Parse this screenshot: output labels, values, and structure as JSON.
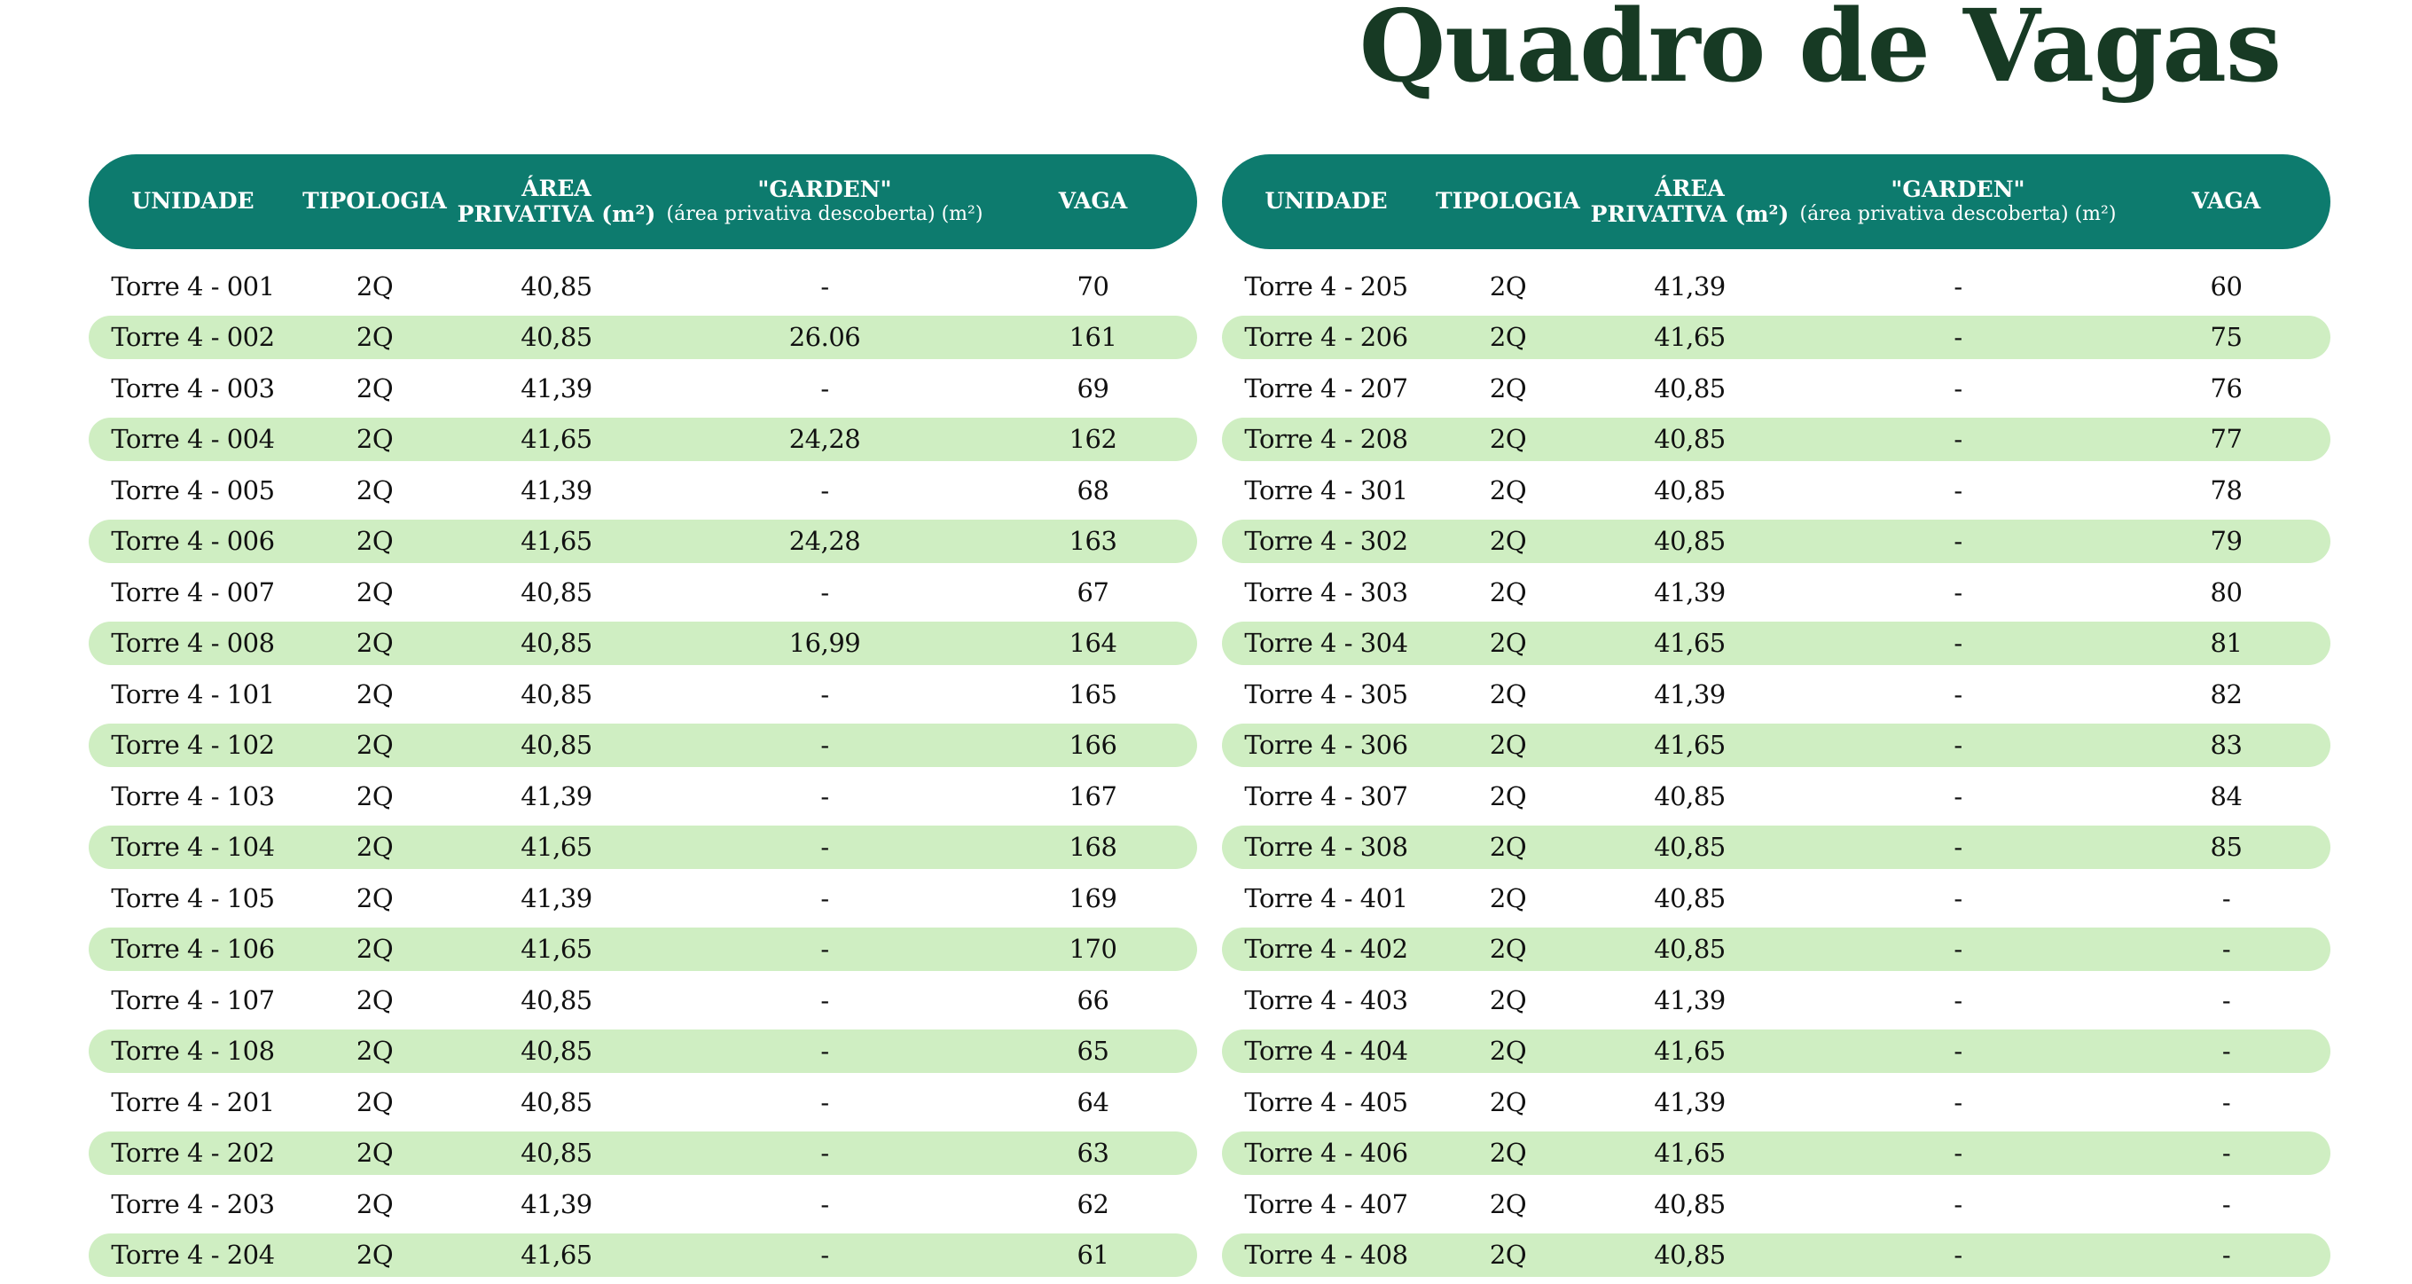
{
  "title": "Quadro de Vagas",
  "colors": {
    "header_bg": "#0d7b6e",
    "row_shade": "#cfeec2",
    "title": "#173a24"
  },
  "headers": {
    "unidade": "UNIDADE",
    "tipologia": "TIPOLOGIA",
    "area_line1": "ÁREA",
    "area_line2": "PRIVATIVA (m²)",
    "garden_line1": "\"GARDEN\"",
    "garden_line2": "(área privativa descoberta) (m²)",
    "vaga": "VAGA"
  },
  "tables": [
    {
      "rows": [
        {
          "unidade": "Torre 4 - 001",
          "tipologia": "2Q",
          "area": "40,85",
          "garden": "-",
          "vaga": "70"
        },
        {
          "unidade": "Torre 4 - 002",
          "tipologia": "2Q",
          "area": "40,85",
          "garden": "26.06",
          "vaga": "161"
        },
        {
          "unidade": "Torre 4 - 003",
          "tipologia": "2Q",
          "area": "41,39",
          "garden": "-",
          "vaga": "69"
        },
        {
          "unidade": "Torre 4 - 004",
          "tipologia": "2Q",
          "area": "41,65",
          "garden": "24,28",
          "vaga": "162"
        },
        {
          "unidade": "Torre 4 - 005",
          "tipologia": "2Q",
          "area": "41,39",
          "garden": "-",
          "vaga": "68"
        },
        {
          "unidade": "Torre 4 - 006",
          "tipologia": "2Q",
          "area": "41,65",
          "garden": "24,28",
          "vaga": "163"
        },
        {
          "unidade": "Torre 4 - 007",
          "tipologia": "2Q",
          "area": "40,85",
          "garden": "-",
          "vaga": "67"
        },
        {
          "unidade": "Torre 4 - 008",
          "tipologia": "2Q",
          "area": "40,85",
          "garden": "16,99",
          "vaga": "164"
        },
        {
          "unidade": "Torre 4 - 101",
          "tipologia": "2Q",
          "area": "40,85",
          "garden": "-",
          "vaga": "165"
        },
        {
          "unidade": "Torre 4 - 102",
          "tipologia": "2Q",
          "area": "40,85",
          "garden": "-",
          "vaga": "166"
        },
        {
          "unidade": "Torre 4 - 103",
          "tipologia": "2Q",
          "area": "41,39",
          "garden": "-",
          "vaga": "167"
        },
        {
          "unidade": "Torre 4 - 104",
          "tipologia": "2Q",
          "area": "41,65",
          "garden": "-",
          "vaga": "168"
        },
        {
          "unidade": "Torre 4 - 105",
          "tipologia": "2Q",
          "area": "41,39",
          "garden": "-",
          "vaga": "169"
        },
        {
          "unidade": "Torre 4 - 106",
          "tipologia": "2Q",
          "area": "41,65",
          "garden": "-",
          "vaga": "170"
        },
        {
          "unidade": "Torre 4 - 107",
          "tipologia": "2Q",
          "area": "40,85",
          "garden": "-",
          "vaga": "66"
        },
        {
          "unidade": "Torre 4 - 108",
          "tipologia": "2Q",
          "area": "40,85",
          "garden": "-",
          "vaga": "65"
        },
        {
          "unidade": "Torre 4 - 201",
          "tipologia": "2Q",
          "area": "40,85",
          "garden": "-",
          "vaga": "64"
        },
        {
          "unidade": "Torre 4 - 202",
          "tipologia": "2Q",
          "area": "40,85",
          "garden": "-",
          "vaga": "63"
        },
        {
          "unidade": "Torre 4 - 203",
          "tipologia": "2Q",
          "area": "41,39",
          "garden": "-",
          "vaga": "62"
        },
        {
          "unidade": "Torre 4 - 204",
          "tipologia": "2Q",
          "area": "41,65",
          "garden": "-",
          "vaga": "61"
        }
      ]
    },
    {
      "rows": [
        {
          "unidade": "Torre 4 - 205",
          "tipologia": "2Q",
          "area": "41,39",
          "garden": "-",
          "vaga": "60"
        },
        {
          "unidade": "Torre 4 - 206",
          "tipologia": "2Q",
          "area": "41,65",
          "garden": "-",
          "vaga": "75"
        },
        {
          "unidade": "Torre 4 - 207",
          "tipologia": "2Q",
          "area": "40,85",
          "garden": "-",
          "vaga": "76"
        },
        {
          "unidade": "Torre 4 - 208",
          "tipologia": "2Q",
          "area": "40,85",
          "garden": "-",
          "vaga": "77"
        },
        {
          "unidade": "Torre 4 - 301",
          "tipologia": "2Q",
          "area": "40,85",
          "garden": "-",
          "vaga": "78"
        },
        {
          "unidade": "Torre 4 - 302",
          "tipologia": "2Q",
          "area": "40,85",
          "garden": "-",
          "vaga": "79"
        },
        {
          "unidade": "Torre 4 - 303",
          "tipologia": "2Q",
          "area": "41,39",
          "garden": "-",
          "vaga": "80"
        },
        {
          "unidade": "Torre 4 - 304",
          "tipologia": "2Q",
          "area": "41,65",
          "garden": "-",
          "vaga": "81"
        },
        {
          "unidade": "Torre 4 - 305",
          "tipologia": "2Q",
          "area": "41,39",
          "garden": "-",
          "vaga": "82"
        },
        {
          "unidade": "Torre 4 - 306",
          "tipologia": "2Q",
          "area": "41,65",
          "garden": "-",
          "vaga": "83"
        },
        {
          "unidade": "Torre 4 - 307",
          "tipologia": "2Q",
          "area": "40,85",
          "garden": "-",
          "vaga": "84"
        },
        {
          "unidade": "Torre 4 - 308",
          "tipologia": "2Q",
          "area": "40,85",
          "garden": "-",
          "vaga": "85"
        },
        {
          "unidade": "Torre 4 - 401",
          "tipologia": "2Q",
          "area": "40,85",
          "garden": "-",
          "vaga": "-"
        },
        {
          "unidade": "Torre 4 - 402",
          "tipologia": "2Q",
          "area": "40,85",
          "garden": "-",
          "vaga": "-"
        },
        {
          "unidade": "Torre 4 - 403",
          "tipologia": "2Q",
          "area": "41,39",
          "garden": "-",
          "vaga": "-"
        },
        {
          "unidade": "Torre 4 - 404",
          "tipologia": "2Q",
          "area": "41,65",
          "garden": "-",
          "vaga": "-"
        },
        {
          "unidade": "Torre 4 - 405",
          "tipologia": "2Q",
          "area": "41,39",
          "garden": "-",
          "vaga": "-"
        },
        {
          "unidade": "Torre 4 - 406",
          "tipologia": "2Q",
          "area": "41,65",
          "garden": "-",
          "vaga": "-"
        },
        {
          "unidade": "Torre 4 - 407",
          "tipologia": "2Q",
          "area": "40,85",
          "garden": "-",
          "vaga": "-"
        },
        {
          "unidade": "Torre 4 - 408",
          "tipologia": "2Q",
          "area": "40,85",
          "garden": "-",
          "vaga": "-"
        }
      ]
    }
  ]
}
